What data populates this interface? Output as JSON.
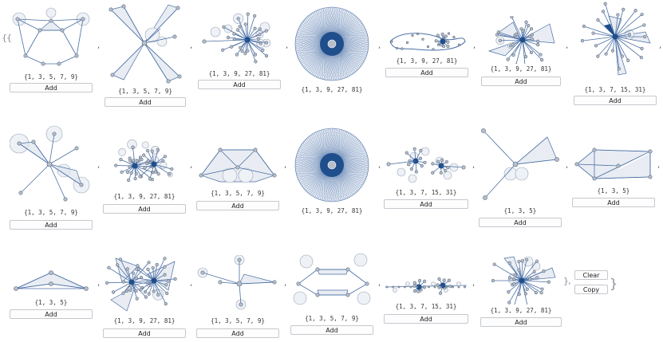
{
  "open_braces": "{{",
  "close_brace": "}",
  "close_inner": "},",
  "separator": ",",
  "add_label": "Add",
  "side_buttons": {
    "clear_label": "Clear",
    "copy_label": "Copy"
  },
  "cells": [
    {
      "caption": "{1, 3, 5, 7, 9}",
      "graph": "hexagon"
    },
    {
      "caption": "{1, 3, 5, 7, 9}",
      "graph": "xshape"
    },
    {
      "caption": "{1, 3, 9, 27, 81}",
      "graph": "fan-right"
    },
    {
      "caption": "{1, 3, 9, 27, 81}",
      "graph": "dense-circle"
    },
    {
      "caption": "{1, 3, 9, 27, 81}",
      "graph": "loop"
    },
    {
      "caption": "{1, 3, 9, 27, 81}",
      "graph": "spiky"
    },
    {
      "caption": "{1, 3, 7, 15, 31}",
      "graph": "star-burst"
    },
    {
      "caption": "{1, 3, 5, 7, 9}",
      "graph": "star-5"
    },
    {
      "caption": "{1, 3, 9, 27, 81}",
      "graph": "cluster"
    },
    {
      "caption": "{1, 3, 5, 7, 9}",
      "graph": "trapezoid"
    },
    {
      "caption": "{1, 3, 9, 27, 81}",
      "graph": "dense-circle"
    },
    {
      "caption": "{1, 3, 7, 15, 31}",
      "graph": "chain"
    },
    {
      "caption": "{1, 3, 5}",
      "graph": "y-shape"
    },
    {
      "caption": "{1, 3, 5}",
      "graph": "parallelogram"
    },
    {
      "caption": "{1, 3, 5}",
      "graph": "triangle-small"
    },
    {
      "caption": "{1, 3, 9, 27, 81}",
      "graph": "double-star"
    },
    {
      "caption": "{1, 3, 5, 7, 9}",
      "graph": "cross"
    },
    {
      "caption": "{1, 3, 5, 7, 9}",
      "graph": "hexagon-open"
    },
    {
      "caption": "{1, 3, 7, 15, 31}",
      "graph": "line-chain"
    },
    {
      "caption": "{1, 3, 9, 27, 81}",
      "graph": "fan-star"
    }
  ],
  "colors": {
    "edge": "#4a6fa5",
    "fill": "#dfe5ee",
    "node": "#b7bfcb",
    "node_stroke": "#5b6b80",
    "hub": "#1f4e8c"
  }
}
